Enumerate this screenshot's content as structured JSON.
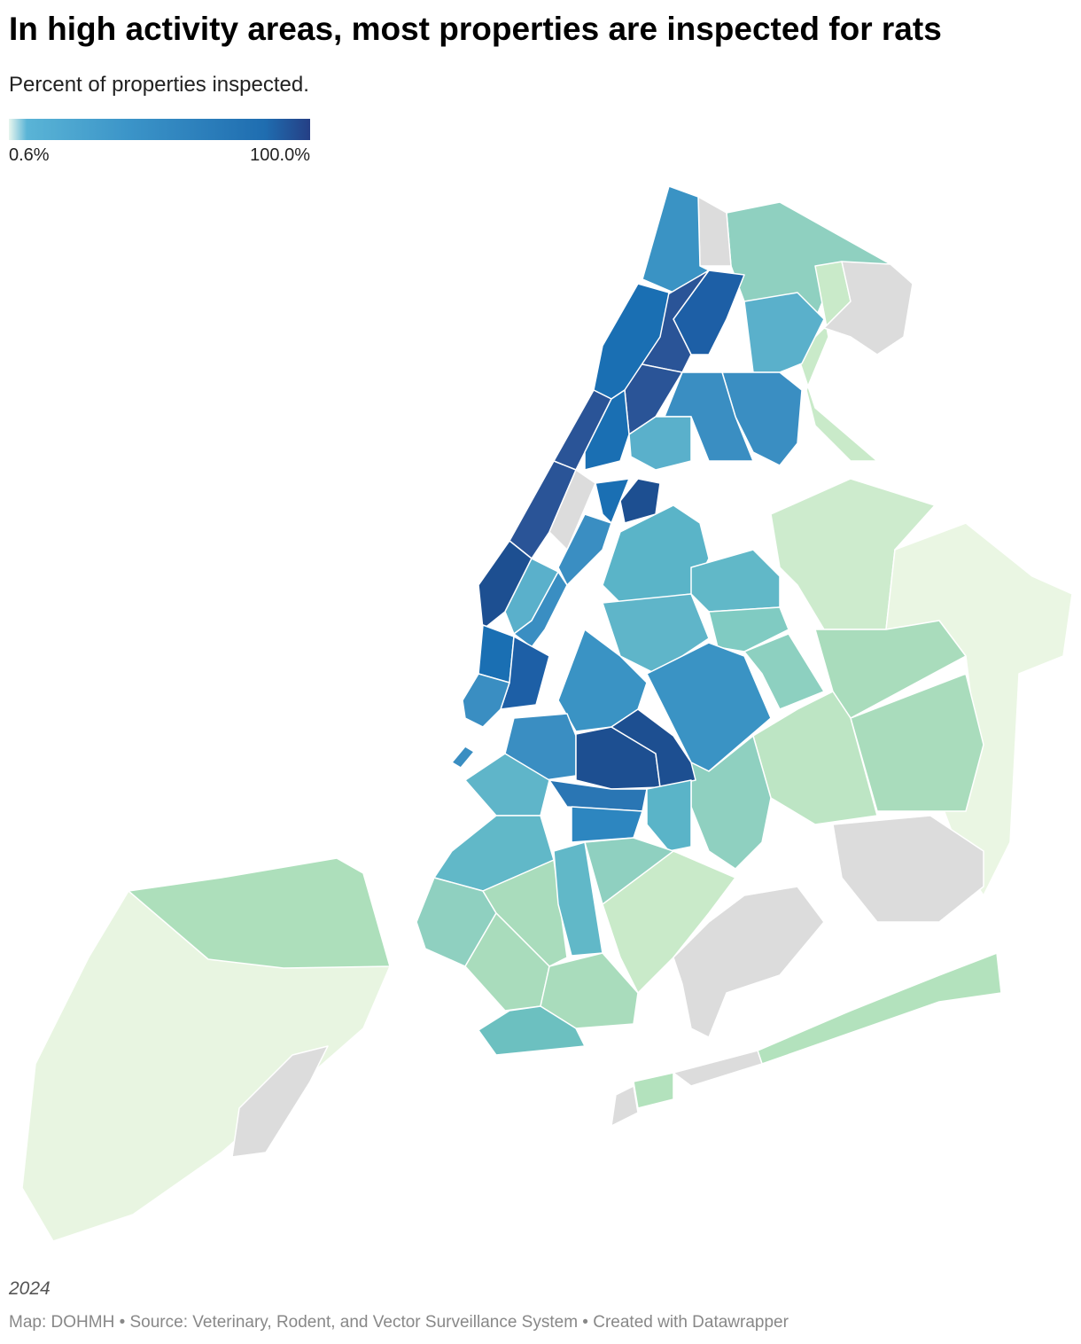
{
  "header": {
    "title": "In high activity areas, most properties are inspected for rats",
    "subtitle": "Percent of properties inspected."
  },
  "legend": {
    "min_label": "0.6%",
    "max_label": "100.0%"
  },
  "notes": {
    "year": "2024",
    "footer": "Map: DOHMH • Source: Veterinary, Rodent, and Vector Surveillance System • Created with Datawrapper"
  }
}
